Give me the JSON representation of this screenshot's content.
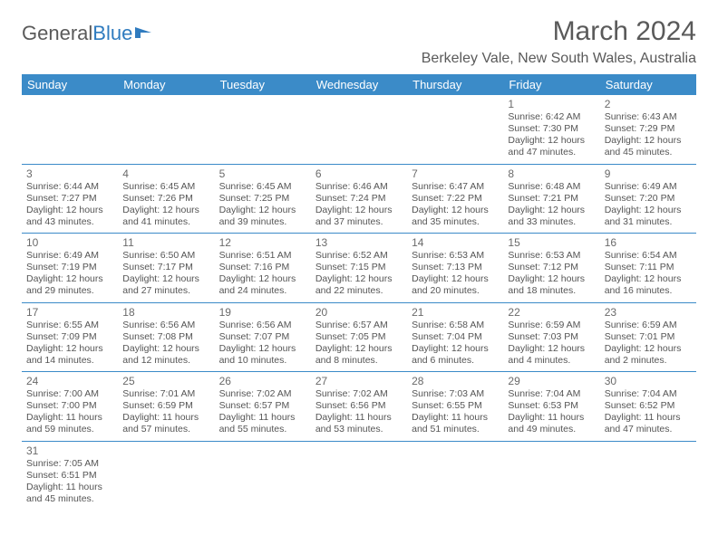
{
  "logo": {
    "text1": "General",
    "text2": "Blue"
  },
  "title": "March 2024",
  "location": "Berkeley Vale, New South Wales, Australia",
  "colors": {
    "header_bg": "#3b8bc8",
    "header_text": "#ffffff",
    "border": "#3b8bc8",
    "text": "#555555",
    "title_text": "#5a5a5a",
    "logo_blue": "#2f7bbf",
    "background": "#ffffff"
  },
  "fonts": {
    "title_size": 30,
    "location_size": 16,
    "dayheader_size": 13,
    "daynum_size": 12,
    "info_size": 10.5
  },
  "dayHeaders": [
    "Sunday",
    "Monday",
    "Tuesday",
    "Wednesday",
    "Thursday",
    "Friday",
    "Saturday"
  ],
  "startOffset": 5,
  "days": [
    {
      "n": "1",
      "sunrise": "6:42 AM",
      "sunset": "7:30 PM",
      "daylight": "12 hours and 47 minutes."
    },
    {
      "n": "2",
      "sunrise": "6:43 AM",
      "sunset": "7:29 PM",
      "daylight": "12 hours and 45 minutes."
    },
    {
      "n": "3",
      "sunrise": "6:44 AM",
      "sunset": "7:27 PM",
      "daylight": "12 hours and 43 minutes."
    },
    {
      "n": "4",
      "sunrise": "6:45 AM",
      "sunset": "7:26 PM",
      "daylight": "12 hours and 41 minutes."
    },
    {
      "n": "5",
      "sunrise": "6:45 AM",
      "sunset": "7:25 PM",
      "daylight": "12 hours and 39 minutes."
    },
    {
      "n": "6",
      "sunrise": "6:46 AM",
      "sunset": "7:24 PM",
      "daylight": "12 hours and 37 minutes."
    },
    {
      "n": "7",
      "sunrise": "6:47 AM",
      "sunset": "7:22 PM",
      "daylight": "12 hours and 35 minutes."
    },
    {
      "n": "8",
      "sunrise": "6:48 AM",
      "sunset": "7:21 PM",
      "daylight": "12 hours and 33 minutes."
    },
    {
      "n": "9",
      "sunrise": "6:49 AM",
      "sunset": "7:20 PM",
      "daylight": "12 hours and 31 minutes."
    },
    {
      "n": "10",
      "sunrise": "6:49 AM",
      "sunset": "7:19 PM",
      "daylight": "12 hours and 29 minutes."
    },
    {
      "n": "11",
      "sunrise": "6:50 AM",
      "sunset": "7:17 PM",
      "daylight": "12 hours and 27 minutes."
    },
    {
      "n": "12",
      "sunrise": "6:51 AM",
      "sunset": "7:16 PM",
      "daylight": "12 hours and 24 minutes."
    },
    {
      "n": "13",
      "sunrise": "6:52 AM",
      "sunset": "7:15 PM",
      "daylight": "12 hours and 22 minutes."
    },
    {
      "n": "14",
      "sunrise": "6:53 AM",
      "sunset": "7:13 PM",
      "daylight": "12 hours and 20 minutes."
    },
    {
      "n": "15",
      "sunrise": "6:53 AM",
      "sunset": "7:12 PM",
      "daylight": "12 hours and 18 minutes."
    },
    {
      "n": "16",
      "sunrise": "6:54 AM",
      "sunset": "7:11 PM",
      "daylight": "12 hours and 16 minutes."
    },
    {
      "n": "17",
      "sunrise": "6:55 AM",
      "sunset": "7:09 PM",
      "daylight": "12 hours and 14 minutes."
    },
    {
      "n": "18",
      "sunrise": "6:56 AM",
      "sunset": "7:08 PM",
      "daylight": "12 hours and 12 minutes."
    },
    {
      "n": "19",
      "sunrise": "6:56 AM",
      "sunset": "7:07 PM",
      "daylight": "12 hours and 10 minutes."
    },
    {
      "n": "20",
      "sunrise": "6:57 AM",
      "sunset": "7:05 PM",
      "daylight": "12 hours and 8 minutes."
    },
    {
      "n": "21",
      "sunrise": "6:58 AM",
      "sunset": "7:04 PM",
      "daylight": "12 hours and 6 minutes."
    },
    {
      "n": "22",
      "sunrise": "6:59 AM",
      "sunset": "7:03 PM",
      "daylight": "12 hours and 4 minutes."
    },
    {
      "n": "23",
      "sunrise": "6:59 AM",
      "sunset": "7:01 PM",
      "daylight": "12 hours and 2 minutes."
    },
    {
      "n": "24",
      "sunrise": "7:00 AM",
      "sunset": "7:00 PM",
      "daylight": "11 hours and 59 minutes."
    },
    {
      "n": "25",
      "sunrise": "7:01 AM",
      "sunset": "6:59 PM",
      "daylight": "11 hours and 57 minutes."
    },
    {
      "n": "26",
      "sunrise": "7:02 AM",
      "sunset": "6:57 PM",
      "daylight": "11 hours and 55 minutes."
    },
    {
      "n": "27",
      "sunrise": "7:02 AM",
      "sunset": "6:56 PM",
      "daylight": "11 hours and 53 minutes."
    },
    {
      "n": "28",
      "sunrise": "7:03 AM",
      "sunset": "6:55 PM",
      "daylight": "11 hours and 51 minutes."
    },
    {
      "n": "29",
      "sunrise": "7:04 AM",
      "sunset": "6:53 PM",
      "daylight": "11 hours and 49 minutes."
    },
    {
      "n": "30",
      "sunrise": "7:04 AM",
      "sunset": "6:52 PM",
      "daylight": "11 hours and 47 minutes."
    },
    {
      "n": "31",
      "sunrise": "7:05 AM",
      "sunset": "6:51 PM",
      "daylight": "11 hours and 45 minutes."
    }
  ],
  "labels": {
    "sunrise": "Sunrise:",
    "sunset": "Sunset:",
    "daylight": "Daylight:"
  }
}
